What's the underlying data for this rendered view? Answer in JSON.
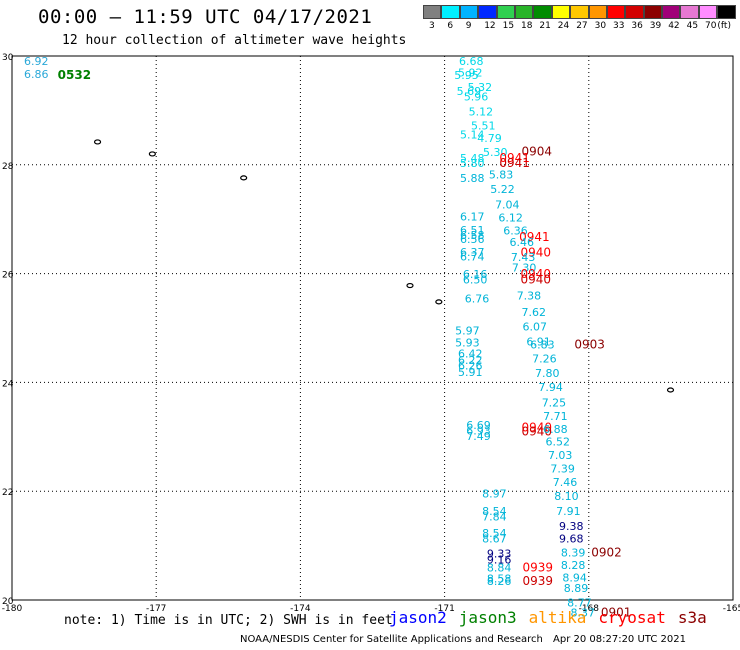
{
  "title": "00:00 – 11:59 UTC 04/17/2021",
  "subtitle": "12 hour collection of altimeter wave heights",
  "legend": {
    "colors": [
      "#808080",
      "#00f0ff",
      "#00b4ff",
      "#0028ff",
      "#30d050",
      "#28b428",
      "#008c00",
      "#ffff00",
      "#ffc800",
      "#ff9600",
      "#ff0000",
      "#d20000",
      "#8c0000",
      "#a00078",
      "#e678d2",
      "#ff8cff",
      "#000000"
    ],
    "labels": [
      "3",
      "6",
      "9",
      "12",
      "15",
      "18",
      "21",
      "24",
      "27",
      "30",
      "33",
      "36",
      "39",
      "42",
      "45",
      "70",
      "(ft)"
    ]
  },
  "axes": {
    "x_ticks": [
      "-180",
      "-177",
      "-174",
      "-171",
      "-168",
      "-165"
    ],
    "y_ticks": [
      "30",
      "28",
      "26",
      "24",
      "22",
      "20"
    ],
    "x_range": [
      -180,
      -165
    ],
    "y_range": [
      20,
      30
    ]
  },
  "observations": [
    {
      "lon": -179.75,
      "lat": 29.83,
      "text": "6.92",
      "color": "#2aa8d8"
    },
    {
      "lon": -179.75,
      "lat": 29.6,
      "text": "6.86",
      "color": "#2aa8d8"
    },
    {
      "lon": -179.05,
      "lat": 29.58,
      "text": "0532",
      "color": "#008000",
      "bold": true
    },
    {
      "lon": -170.7,
      "lat": 29.83,
      "text": "6.68",
      "color": "#00d8e8"
    },
    {
      "lon": -170.72,
      "lat": 29.62,
      "text": "5.92",
      "color": "#00d8e8"
    },
    {
      "lon": -170.8,
      "lat": 29.58,
      "text": "5.95",
      "color": "#00d8e8"
    },
    {
      "lon": -170.52,
      "lat": 29.36,
      "text": "5.32",
      "color": "#00d8e8"
    },
    {
      "lon": -170.75,
      "lat": 29.28,
      "text": "5.69",
      "color": "#00d8e8"
    },
    {
      "lon": -170.6,
      "lat": 29.18,
      "text": "5.96",
      "color": "#00d8e8"
    },
    {
      "lon": -170.5,
      "lat": 28.91,
      "text": "5.12",
      "color": "#00d8e8"
    },
    {
      "lon": -170.45,
      "lat": 28.65,
      "text": "5.51",
      "color": "#00d8e8"
    },
    {
      "lon": -170.68,
      "lat": 28.48,
      "text": "5.14",
      "color": "#00d8e8"
    },
    {
      "lon": -170.32,
      "lat": 28.42,
      "text": "4.79",
      "color": "#00d8e8"
    },
    {
      "lon": -170.2,
      "lat": 28.16,
      "text": "5.30",
      "color": "#00d8e8"
    },
    {
      "lon": -169.4,
      "lat": 28.17,
      "text": "0904",
      "color": "#8b0000"
    },
    {
      "lon": -170.68,
      "lat": 28.05,
      "text": "5.48",
      "color": "#00d8e8"
    },
    {
      "lon": -170.68,
      "lat": 27.96,
      "text": "5.80",
      "color": "#00d8e8"
    },
    {
      "lon": -169.86,
      "lat": 28.05,
      "text": "0941",
      "color": "#ff0000"
    },
    {
      "lon": -169.86,
      "lat": 27.96,
      "text": "0941",
      "color": "#cc0000"
    },
    {
      "lon": -170.08,
      "lat": 27.75,
      "text": "5.83",
      "color": "#00b4d8"
    },
    {
      "lon": -170.68,
      "lat": 27.68,
      "text": "5.88",
      "color": "#00b4d8"
    },
    {
      "lon": -170.05,
      "lat": 27.48,
      "text": "5.22",
      "color": "#00b4d8"
    },
    {
      "lon": -169.95,
      "lat": 27.2,
      "text": "7.04",
      "color": "#00b4d8"
    },
    {
      "lon": -170.68,
      "lat": 26.98,
      "text": "6.17",
      "color": "#00b4d8"
    },
    {
      "lon": -169.88,
      "lat": 26.96,
      "text": "6.12",
      "color": "#00b4d8"
    },
    {
      "lon": -170.68,
      "lat": 26.73,
      "text": "6.51",
      "color": "#00b4d8"
    },
    {
      "lon": -170.68,
      "lat": 26.64,
      "text": "6.58",
      "color": "#00b4d8"
    },
    {
      "lon": -170.68,
      "lat": 26.56,
      "text": "6.56",
      "color": "#00b4d8"
    },
    {
      "lon": -169.78,
      "lat": 26.72,
      "text": "6.36",
      "color": "#00b4d8"
    },
    {
      "lon": -169.45,
      "lat": 26.6,
      "text": "0941",
      "color": "#ff0000"
    },
    {
      "lon": -169.65,
      "lat": 26.51,
      "text": "6.46",
      "color": "#00b4d8"
    },
    {
      "lon": -170.68,
      "lat": 26.32,
      "text": "6.37",
      "color": "#00b4d8"
    },
    {
      "lon": -170.68,
      "lat": 26.24,
      "text": "6.74",
      "color": "#00b4d8"
    },
    {
      "lon": -169.42,
      "lat": 26.31,
      "text": "0940",
      "color": "#ff0000"
    },
    {
      "lon": -169.62,
      "lat": 26.23,
      "text": "7.43",
      "color": "#00b4d8"
    },
    {
      "lon": -169.6,
      "lat": 26.04,
      "text": "7.30",
      "color": "#00b4d8"
    },
    {
      "lon": -170.62,
      "lat": 25.92,
      "text": "6.16",
      "color": "#00b4d8"
    },
    {
      "lon": -169.42,
      "lat": 25.92,
      "text": "0940",
      "color": "#ff0000"
    },
    {
      "lon": -170.62,
      "lat": 25.82,
      "text": "6.50",
      "color": "#00b4d8"
    },
    {
      "lon": -169.42,
      "lat": 25.82,
      "text": "0940",
      "color": "#cc0000"
    },
    {
      "lon": -169.5,
      "lat": 25.52,
      "text": "7.38",
      "color": "#00b4d8"
    },
    {
      "lon": -170.58,
      "lat": 25.47,
      "text": "6.76",
      "color": "#00b4d8"
    },
    {
      "lon": -169.4,
      "lat": 25.22,
      "text": "7.62",
      "color": "#00b4d8"
    },
    {
      "lon": -169.38,
      "lat": 24.95,
      "text": "6.07",
      "color": "#00b4d8"
    },
    {
      "lon": -170.78,
      "lat": 24.88,
      "text": "5.97",
      "color": "#00b4d8"
    },
    {
      "lon": -169.3,
      "lat": 24.68,
      "text": "6.91",
      "color": "#00b4d8"
    },
    {
      "lon": -170.78,
      "lat": 24.66,
      "text": "5.93",
      "color": "#00b4d8"
    },
    {
      "lon": -168.3,
      "lat": 24.62,
      "text": "0903",
      "color": "#8b0000"
    },
    {
      "lon": -169.22,
      "lat": 24.62,
      "text": "6.83",
      "color": "#00b4d8"
    },
    {
      "lon": -170.72,
      "lat": 24.46,
      "text": "6.42",
      "color": "#00b4d8"
    },
    {
      "lon": -170.72,
      "lat": 24.34,
      "text": "6.22",
      "color": "#00b4d8"
    },
    {
      "lon": -169.18,
      "lat": 24.37,
      "text": "7.26",
      "color": "#00b4d8"
    },
    {
      "lon": -170.72,
      "lat": 24.24,
      "text": "6.26",
      "color": "#00b4d8"
    },
    {
      "lon": -170.72,
      "lat": 24.12,
      "text": "5.91",
      "color": "#00b4d8"
    },
    {
      "lon": -169.12,
      "lat": 24.1,
      "text": "7.80",
      "color": "#00b4d8"
    },
    {
      "lon": -169.05,
      "lat": 23.84,
      "text": "7.94",
      "color": "#00b4d8"
    },
    {
      "lon": -168.98,
      "lat": 23.56,
      "text": "7.25",
      "color": "#00b4d8"
    },
    {
      "lon": -168.95,
      "lat": 23.31,
      "text": "7.71",
      "color": "#00b4d8"
    },
    {
      "lon": -170.55,
      "lat": 23.14,
      "text": "6.69",
      "color": "#00b4d8"
    },
    {
      "lon": -170.55,
      "lat": 23.04,
      "text": "6.93",
      "color": "#00b4d8"
    },
    {
      "lon": -169.4,
      "lat": 23.1,
      "text": "0940",
      "color": "#ff0000"
    },
    {
      "lon": -169.4,
      "lat": 23.02,
      "text": "0940",
      "color": "#cc0000"
    },
    {
      "lon": -168.95,
      "lat": 23.07,
      "text": "6.88",
      "color": "#00b4d8"
    },
    {
      "lon": -170.55,
      "lat": 22.94,
      "text": "7.49",
      "color": "#00b4d8"
    },
    {
      "lon": -168.9,
      "lat": 22.84,
      "text": "6.52",
      "color": "#00b4d8"
    },
    {
      "lon": -168.85,
      "lat": 22.59,
      "text": "7.03",
      "color": "#00b4d8"
    },
    {
      "lon": -168.8,
      "lat": 22.34,
      "text": "7.39",
      "color": "#00b4d8"
    },
    {
      "lon": -168.75,
      "lat": 22.1,
      "text": "7.46",
      "color": "#00b4d8"
    },
    {
      "lon": -170.22,
      "lat": 21.88,
      "text": "8.97",
      "color": "#00b4d8"
    },
    {
      "lon": -168.72,
      "lat": 21.84,
      "text": "8.10",
      "color": "#00b4d8"
    },
    {
      "lon": -170.22,
      "lat": 21.56,
      "text": "8.54",
      "color": "#00b4d8"
    },
    {
      "lon": -168.68,
      "lat": 21.56,
      "text": "7.91",
      "color": "#00b4d8"
    },
    {
      "lon": -170.22,
      "lat": 21.46,
      "text": "7.84",
      "color": "#00b4d8"
    },
    {
      "lon": -168.62,
      "lat": 21.29,
      "text": "9.38",
      "color": "#000080"
    },
    {
      "lon": -170.22,
      "lat": 21.16,
      "text": "8.54",
      "color": "#00b4d8"
    },
    {
      "lon": -168.62,
      "lat": 21.06,
      "text": "9.68",
      "color": "#000080"
    },
    {
      "lon": -170.22,
      "lat": 21.06,
      "text": "8.67",
      "color": "#00b4d8"
    },
    {
      "lon": -167.95,
      "lat": 20.8,
      "text": "0902",
      "color": "#8b0000"
    },
    {
      "lon": -168.58,
      "lat": 20.8,
      "text": "8.39",
      "color": "#00b4d8"
    },
    {
      "lon": -170.12,
      "lat": 20.78,
      "text": "9.33",
      "color": "#000080"
    },
    {
      "lon": -170.12,
      "lat": 20.67,
      "text": "9.16",
      "color": "#000080"
    },
    {
      "lon": -168.58,
      "lat": 20.57,
      "text": "8.28",
      "color": "#00b4d8"
    },
    {
      "lon": -169.38,
      "lat": 20.52,
      "text": "0939",
      "color": "#ff0000"
    },
    {
      "lon": -170.12,
      "lat": 20.52,
      "text": "8.84",
      "color": "#00b4d8"
    },
    {
      "lon": -168.55,
      "lat": 20.34,
      "text": "8.94",
      "color": "#00b4d8"
    },
    {
      "lon": -170.12,
      "lat": 20.32,
      "text": "8.58",
      "color": "#00b4d8"
    },
    {
      "lon": -170.12,
      "lat": 20.28,
      "text": "8.26",
      "color": "#00b4d8"
    },
    {
      "lon": -169.38,
      "lat": 20.28,
      "text": "0939",
      "color": "#cc0000"
    },
    {
      "lon": -168.52,
      "lat": 20.15,
      "text": "8.89",
      "color": "#00b4d8"
    },
    {
      "lon": -168.45,
      "lat": 19.88,
      "text": "8.77",
      "color": "#00b4d8"
    },
    {
      "lon": -168.38,
      "lat": 19.7,
      "text": "8.37",
      "color": "#00b4d8"
    },
    {
      "lon": -167.75,
      "lat": 19.7,
      "text": "0901",
      "color": "#8b0000"
    }
  ],
  "islands": [
    {
      "lon": -178.22,
      "lat": 28.42
    },
    {
      "lon": -177.08,
      "lat": 28.2
    },
    {
      "lon": -175.18,
      "lat": 27.76
    },
    {
      "lon": -171.72,
      "lat": 25.78
    },
    {
      "lon": -171.12,
      "lat": 25.48
    },
    {
      "lon": -166.3,
      "lat": 23.86
    }
  ],
  "note": "note:  1) Time is in UTC; 2) SWH is in feet",
  "satellites": [
    {
      "name": "jason2",
      "color": "#0000ff"
    },
    {
      "name": "jason3",
      "color": "#008000"
    },
    {
      "name": "altika",
      "color": "#ff9600"
    },
    {
      "name": "cryosat",
      "color": "#ff0000"
    },
    {
      "name": "s3a",
      "color": "#8b0000"
    }
  ],
  "footer_left": "NOAA/NESDIS Center for Satellite Applications and Research",
  "footer_right": "Apr 20 08:27:20 UTC 2021"
}
